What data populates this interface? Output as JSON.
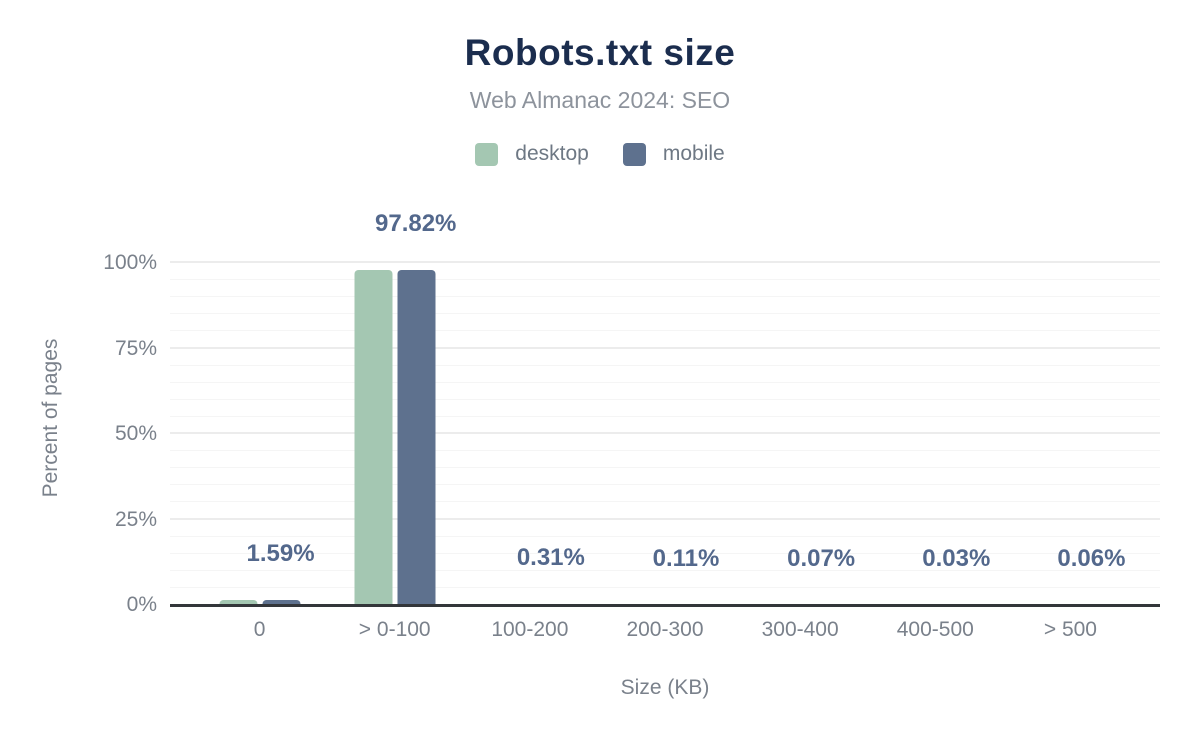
{
  "chart_data": {
    "type": "bar",
    "title": "Robots.txt size",
    "subtitle": "Web Almanac 2024: SEO",
    "xlabel": "Size (KB)",
    "ylabel": "Percent of pages",
    "categories": [
      "0",
      "> 0-100",
      "100-200",
      "200-300",
      "300-400",
      "400-500",
      "> 500"
    ],
    "series": [
      {
        "name": "desktop",
        "color": "#a4c7b2",
        "values": [
          1.59,
          97.82,
          0.31,
          0.11,
          0.07,
          0.03,
          0.06
        ]
      },
      {
        "name": "mobile",
        "color": "#5e718e",
        "values": [
          1.59,
          97.82,
          0.31,
          0.11,
          0.07,
          0.03,
          0.06
        ]
      }
    ],
    "data_labels": [
      "1.59%",
      "97.82%",
      "0.31%",
      "0.11%",
      "0.07%",
      "0.03%",
      "0.06%"
    ],
    "y_ticks": [
      {
        "label": "0%",
        "value": 0
      },
      {
        "label": "25%",
        "value": 25
      },
      {
        "label": "50%",
        "value": 50
      },
      {
        "label": "75%",
        "value": 75
      },
      {
        "label": "100%",
        "value": 100
      }
    ],
    "ylim": [
      0,
      100
    ],
    "grid": {
      "major_step": 25,
      "minor_step": 5,
      "major_color": "#ececec",
      "minor_color": "#f5f5f5",
      "grid_on": true
    },
    "legend_position": "top",
    "colors": {
      "title": "#1b2d4e",
      "subtitle": "#8d939c",
      "axis_text": "#7a818b",
      "data_label": "#53688c",
      "axis_line": "#33363a",
      "background": "#ffffff"
    }
  }
}
